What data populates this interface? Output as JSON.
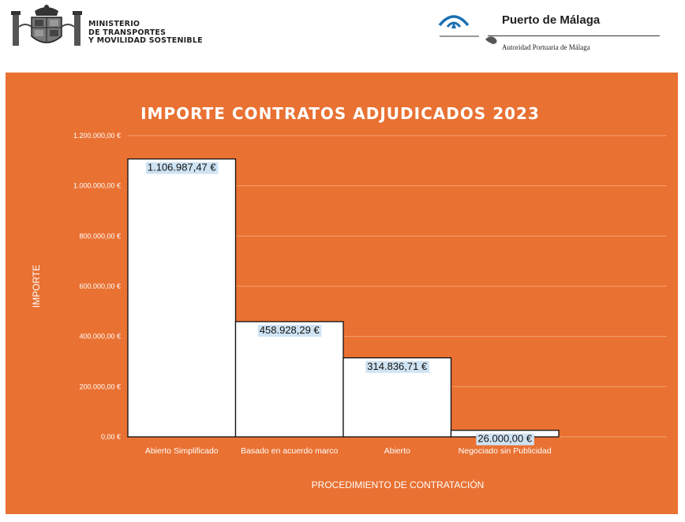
{
  "header": {
    "ministry_lines": [
      "MINISTERIO",
      "DE TRANSPORTES",
      "Y MOVILIDAD SOSTENIBLE"
    ],
    "port_name": "Puerto de Málaga",
    "port_subtitle": "Autoridad Portuaria de Málaga"
  },
  "colors": {
    "panel_background": "#e97132",
    "bar_fill": "#ffffff",
    "bar_stroke": "#111111",
    "data_label_background": "#cfe3f3",
    "text": "#ffffff"
  },
  "chart_data": {
    "type": "bar",
    "title": "IMPORTE CONTRATOS ADJUDICADOS 2023",
    "xlabel": "PROCEDIMIENTO DE CONTRATACIÓN",
    "ylabel": "IMPORTE",
    "categories": [
      "Abierto Simplificado",
      "Basado en acuerdo marco",
      "Abierto",
      "Negociado sin Publicidad"
    ],
    "values": [
      1106987.47,
      458928.29,
      314836.71,
      26000.0
    ],
    "data_labels": [
      "1.106.987,47 €",
      "458.928,29 €",
      "314.836,71 €",
      "26.000,00 €"
    ],
    "ylim": [
      0,
      1200000
    ],
    "yticks": [
      0,
      200000,
      400000,
      600000,
      800000,
      1000000,
      1200000
    ],
    "ytick_labels": [
      "0,00 €",
      "200.000,00 €",
      "400.000,00 €",
      "600.000,00 €",
      "800.000,00 €",
      "1.000.000,00 €",
      "1.200.000,00 €"
    ],
    "grid": true,
    "legend": "none"
  }
}
